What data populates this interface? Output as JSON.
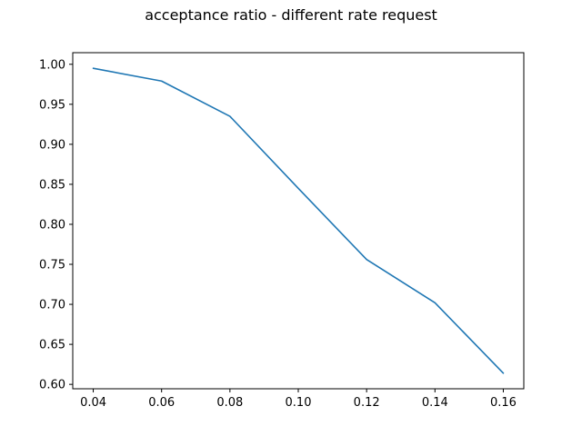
{
  "chart_data": {
    "type": "line",
    "title": "acceptance ratio - different rate request",
    "xlabel": "",
    "ylabel": "",
    "x": [
      0.04,
      0.06,
      0.08,
      0.1,
      0.12,
      0.14,
      0.16
    ],
    "series": [
      {
        "values": [
          0.995,
          0.979,
          0.935,
          0.845,
          0.756,
          0.702,
          0.614
        ]
      }
    ],
    "xlim": [
      0.034,
      0.166
    ],
    "ylim": [
      0.5945,
      1.0145
    ],
    "x_ticks": [
      "0.04",
      "0.06",
      "0.08",
      "0.10",
      "0.12",
      "0.14",
      "0.16"
    ],
    "y_ticks": [
      "0.60",
      "0.65",
      "0.70",
      "0.75",
      "0.80",
      "0.85",
      "0.90",
      "0.95",
      "1.00"
    ],
    "grid": false,
    "legend": "none",
    "line_color": "#1f77b4"
  }
}
